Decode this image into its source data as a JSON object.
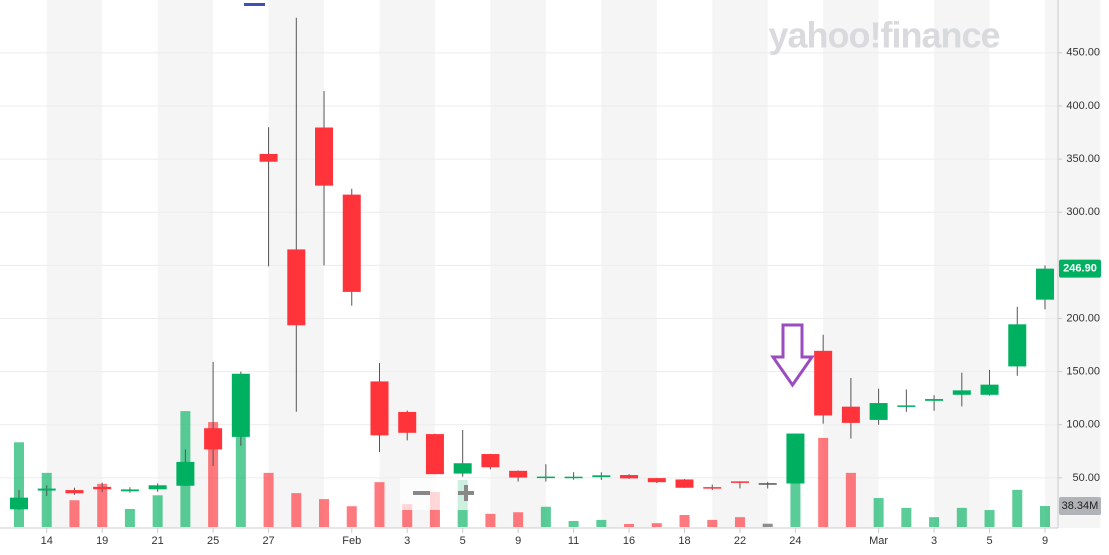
{
  "chart_data": {
    "type": "candlestick",
    "logo": "yahoo!finance",
    "categories": [
      null,
      "14",
      null,
      "19",
      null,
      "21",
      null,
      "25",
      null,
      "27",
      null,
      null,
      "Feb",
      null,
      "3",
      null,
      "5",
      null,
      "9",
      null,
      "11",
      null,
      "16",
      null,
      "18",
      null,
      "22",
      null,
      "24",
      null,
      null,
      "Mar",
      null,
      "3",
      null,
      "5",
      null,
      "9"
    ],
    "open": [
      20.42,
      38.09,
      38.49,
      41.55,
      37.37,
      39.23,
      42.59,
      96.73,
      88.56,
      354.83,
      265.0,
      379.71,
      316.56,
      140.76,
      112.01,
      91.19,
      54.04,
      72.41,
      56.61,
      50.77,
      50.01,
      50.75,
      52.66,
      49.77,
      48.49,
      41.28,
      46.69,
      44.97,
      44.7,
      169.56,
      117.0,
      104.54,
      116.93,
      122.5,
      128.17,
      128.17,
      154.89,
      217.71
    ],
    "high": [
      38.65,
      43.06,
      40.75,
      45.52,
      41.19,
      44.75,
      76.76,
      159.18,
      150.0,
      380.0,
      483.0,
      413.98,
      322.0,
      158.0,
      113.4,
      91.5,
      95.0,
      72.66,
      57.0,
      62.83,
      55.32,
      55.24,
      53.5,
      50.0,
      48.87,
      43.72,
      46.7,
      46.23,
      91.71,
      184.68,
      144.0,
      133.99,
      133.2,
      127.75,
      149.0,
      151.53,
      210.87,
      249.85
    ],
    "low": [
      20.03,
      33.05,
      34.01,
      36.64,
      36.06,
      37.0,
      42.32,
      61.13,
      80.2,
      249.0,
      112.25,
      250.0,
      212.0,
      74.22,
      85.25,
      53.33,
      51.09,
      58.02,
      46.52,
      46.55,
      48.22,
      48.05,
      49.04,
      45.03,
      40.65,
      38.5,
      40.1,
      40.0,
      44.7,
      101.0,
      87.0,
      99.97,
      112.2,
      113.12,
      117.25,
      127.5,
      146.1,
      208.51
    ],
    "close": [
      31.4,
      39.91,
      35.5,
      39.36,
      39.12,
      43.03,
      65.01,
      76.79,
      147.98,
      347.51,
      193.6,
      325.0,
      225.0,
      90.0,
      92.41,
      53.5,
      63.77,
      60.0,
      50.31,
      51.2,
      51.1,
      52.4,
      49.51,
      45.94,
      40.69,
      40.59,
      46.0,
      44.97,
      91.71,
      108.73,
      101.74,
      120.4,
      118.18,
      124.18,
      132.35,
      137.74,
      194.5,
      246.9
    ],
    "close_labels": [
      null,
      null,
      null,
      null,
      null,
      null,
      null,
      null,
      null,
      null,
      null,
      null,
      null,
      null,
      null,
      null,
      null,
      null,
      null,
      null,
      null,
      null,
      null,
      null,
      null,
      null,
      null,
      null,
      null,
      null,
      null,
      null,
      null,
      null,
      null,
      null,
      null,
      "246.90"
    ],
    "volume": [
      155,
      99,
      49,
      79,
      33,
      58,
      212,
      192,
      178,
      99,
      62,
      51,
      38,
      82,
      42,
      64,
      86,
      24,
      27,
      37,
      11,
      13,
      5.5,
      7,
      22,
      13,
      18,
      6,
      166,
      163,
      99,
      53,
      35,
      18,
      35,
      31,
      68,
      38.34
    ],
    "volume_labels": [
      null,
      null,
      null,
      null,
      null,
      null,
      null,
      null,
      null,
      null,
      null,
      null,
      null,
      null,
      null,
      null,
      null,
      null,
      null,
      null,
      null,
      null,
      null,
      null,
      null,
      null,
      null,
      null,
      null,
      null,
      null,
      null,
      null,
      null,
      null,
      null,
      null,
      "38.34M"
    ],
    "ylim": [
      0,
      495
    ],
    "yticks": [
      {
        "value": 50,
        "label": "50.00"
      },
      {
        "value": 100,
        "label": "100.00"
      },
      {
        "value": 150,
        "label": "150.00"
      },
      {
        "value": 200,
        "label": "200.00"
      },
      {
        "value": 250,
        "label": "250.00"
      },
      {
        "value": 300,
        "label": "300.00"
      },
      {
        "value": 350,
        "label": "350.00"
      },
      {
        "value": 400,
        "label": "400.00"
      },
      {
        "value": 450,
        "label": "450.00"
      }
    ],
    "y2lim": [
      0,
      300
    ],
    "grid": true,
    "up_color": "#00b061",
    "down_color": "#ff333a",
    "flat_color": "#555555",
    "volume_label_color": "#b0b3b8"
  }
}
